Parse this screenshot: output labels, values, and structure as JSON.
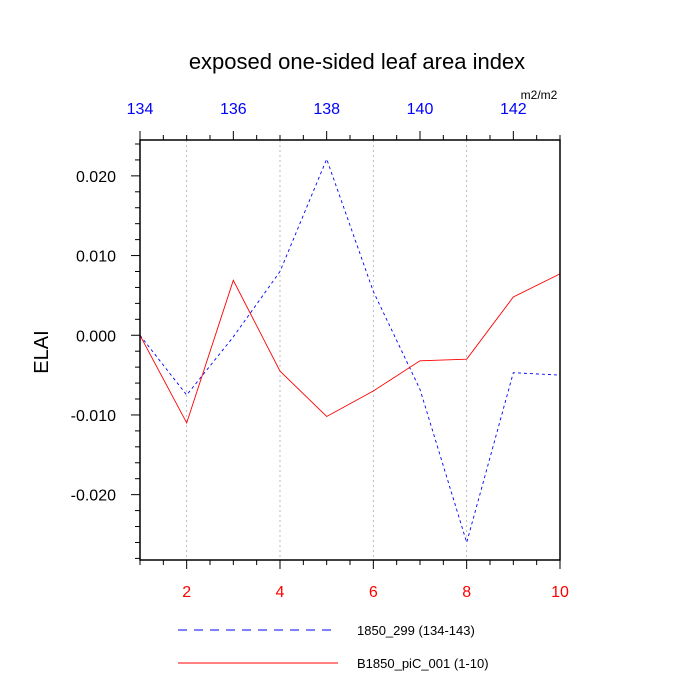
{
  "chart_data": {
    "type": "line",
    "title": "exposed one-sided leaf area index",
    "ylabel": "ELAI",
    "units": "m2/m2",
    "ylim": [
      -0.0282,
      0.0245
    ],
    "yticks": [
      "0.020",
      "0.010",
      "0.000",
      "-0.010",
      "-0.020"
    ],
    "ytick_values": [
      0.02,
      0.01,
      0.0,
      -0.01,
      -0.02
    ],
    "bottom_axis": {
      "range": [
        1,
        10
      ],
      "ticks": [
        "2",
        "4",
        "6",
        "8",
        "10"
      ],
      "tick_values": [
        2,
        4,
        6,
        8,
        10
      ],
      "color": "#ff0000"
    },
    "top_axis": {
      "range": [
        134,
        143
      ],
      "ticks": [
        "134",
        "136",
        "138",
        "140",
        "142"
      ],
      "tick_values": [
        134,
        136,
        138,
        140,
        142
      ],
      "color": "#0000ff"
    },
    "vertical_gridlines": true,
    "series": [
      {
        "name": "1850_299 (134-143)",
        "axis": "top",
        "color": "#0000ff",
        "style": "dashed",
        "x": [
          134,
          135,
          136,
          137,
          138,
          139,
          140,
          141,
          142,
          143
        ],
        "values": [
          0.0,
          -0.0075,
          -0.0002,
          0.008,
          0.0221,
          0.0055,
          -0.0068,
          -0.026,
          -0.0047,
          -0.005
        ]
      },
      {
        "name": "B1850_piC_001 (1-10)",
        "axis": "bottom",
        "color": "#ff0000",
        "style": "solid",
        "x": [
          1,
          2,
          3,
          4,
          5,
          6,
          7,
          8,
          9,
          10
        ],
        "values": [
          0.0,
          -0.011,
          0.0069,
          -0.0045,
          -0.0102,
          -0.007,
          -0.0032,
          -0.003,
          0.0048,
          0.0077
        ]
      }
    ],
    "legend_position": "bottom"
  }
}
